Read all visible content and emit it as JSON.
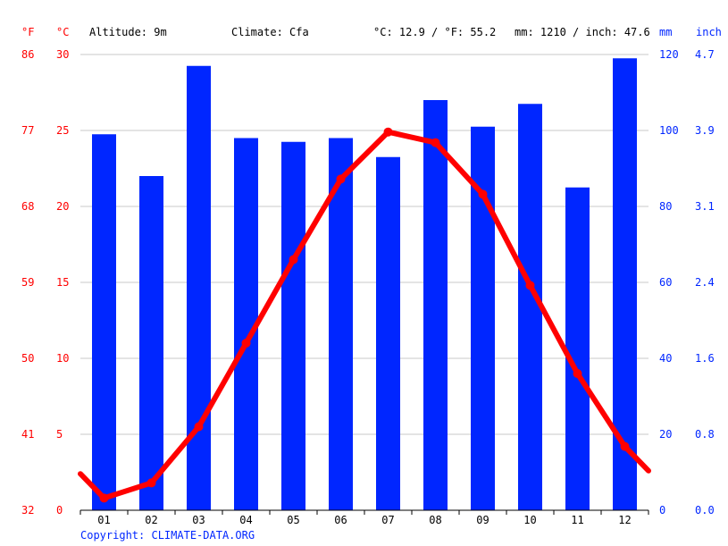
{
  "header": {
    "altitude": "Altitude: 9m",
    "climate": "Climate: Cfa",
    "avg_temp": "°C: 12.9 / °F: 55.2",
    "precip": "mm: 1210 / inch: 47.6"
  },
  "footer": {
    "copyright": "Copyright: CLIMATE-DATA.ORG"
  },
  "colors": {
    "temperature": "#ff0000",
    "precipitation": "#0026ff",
    "grid": "#c8c8c8"
  },
  "chart_data": {
    "type": "bar",
    "categories": [
      "01",
      "02",
      "03",
      "04",
      "05",
      "06",
      "07",
      "08",
      "09",
      "10",
      "11",
      "12"
    ],
    "series": [
      {
        "type": "bar",
        "axis": "right",
        "values": [
          99,
          88,
          117,
          98,
          97,
          98,
          93,
          108,
          101,
          107,
          85,
          119
        ]
      },
      {
        "type": "line",
        "axis": "left",
        "values": [
          0.8,
          1.8,
          5.5,
          11.0,
          16.5,
          21.8,
          24.9,
          24.2,
          20.8,
          14.8,
          9.0,
          4.2
        ],
        "edge_start": 2.4,
        "edge_end": 2.6
      }
    ],
    "y_left": {
      "unit_top_c": "°C",
      "unit_top_f": "°F",
      "range": [
        0,
        30
      ],
      "ticks_c": [
        "0",
        "5",
        "10",
        "15",
        "20",
        "25",
        "30"
      ],
      "ticks_f": [
        "32",
        "41",
        "50",
        "59",
        "68",
        "77",
        "86"
      ]
    },
    "y_right": {
      "unit_top_mm": "mm",
      "unit_top_inch": "inch",
      "range": [
        0,
        120
      ],
      "ticks_mm": [
        "0",
        "20",
        "40",
        "60",
        "80",
        "100",
        "120"
      ],
      "ticks_inch": [
        "0.0",
        "0.8",
        "1.6",
        "2.4",
        "3.1",
        "3.9",
        "4.7"
      ]
    },
    "grid": true
  }
}
